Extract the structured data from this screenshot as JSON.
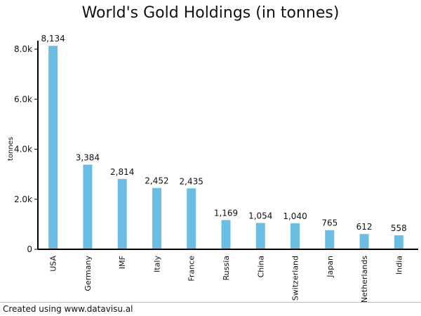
{
  "chart_data": {
    "type": "bar",
    "title": "World's Gold Holdings (in tonnes)",
    "xlabel": "",
    "ylabel": "tonnes",
    "categories": [
      "USA",
      "Germany",
      "IMF",
      "Italy",
      "France",
      "Russia",
      "China",
      "Switzerland",
      "Japan",
      "Netherlands",
      "India"
    ],
    "values": [
      8134,
      3384,
      2814,
      2452,
      2435,
      1169,
      1054,
      1040,
      765,
      612,
      558
    ],
    "value_labels": [
      "8,134",
      "3,384",
      "2,814",
      "2,452",
      "2,435",
      "1,169",
      "1,054",
      "1,040",
      "765",
      "612",
      "558"
    ],
    "ylim": [
      0,
      8000
    ],
    "yticks": [
      0,
      2000,
      4000,
      6000,
      8000
    ],
    "ytick_labels": [
      "0",
      "2.0k",
      "4.0k",
      "6.0k",
      "8.0k"
    ],
    "grid": false,
    "legend": "none",
    "bar_color": "#6bbee3"
  },
  "footer": {
    "credit": "Created using www.datavisu.al"
  }
}
